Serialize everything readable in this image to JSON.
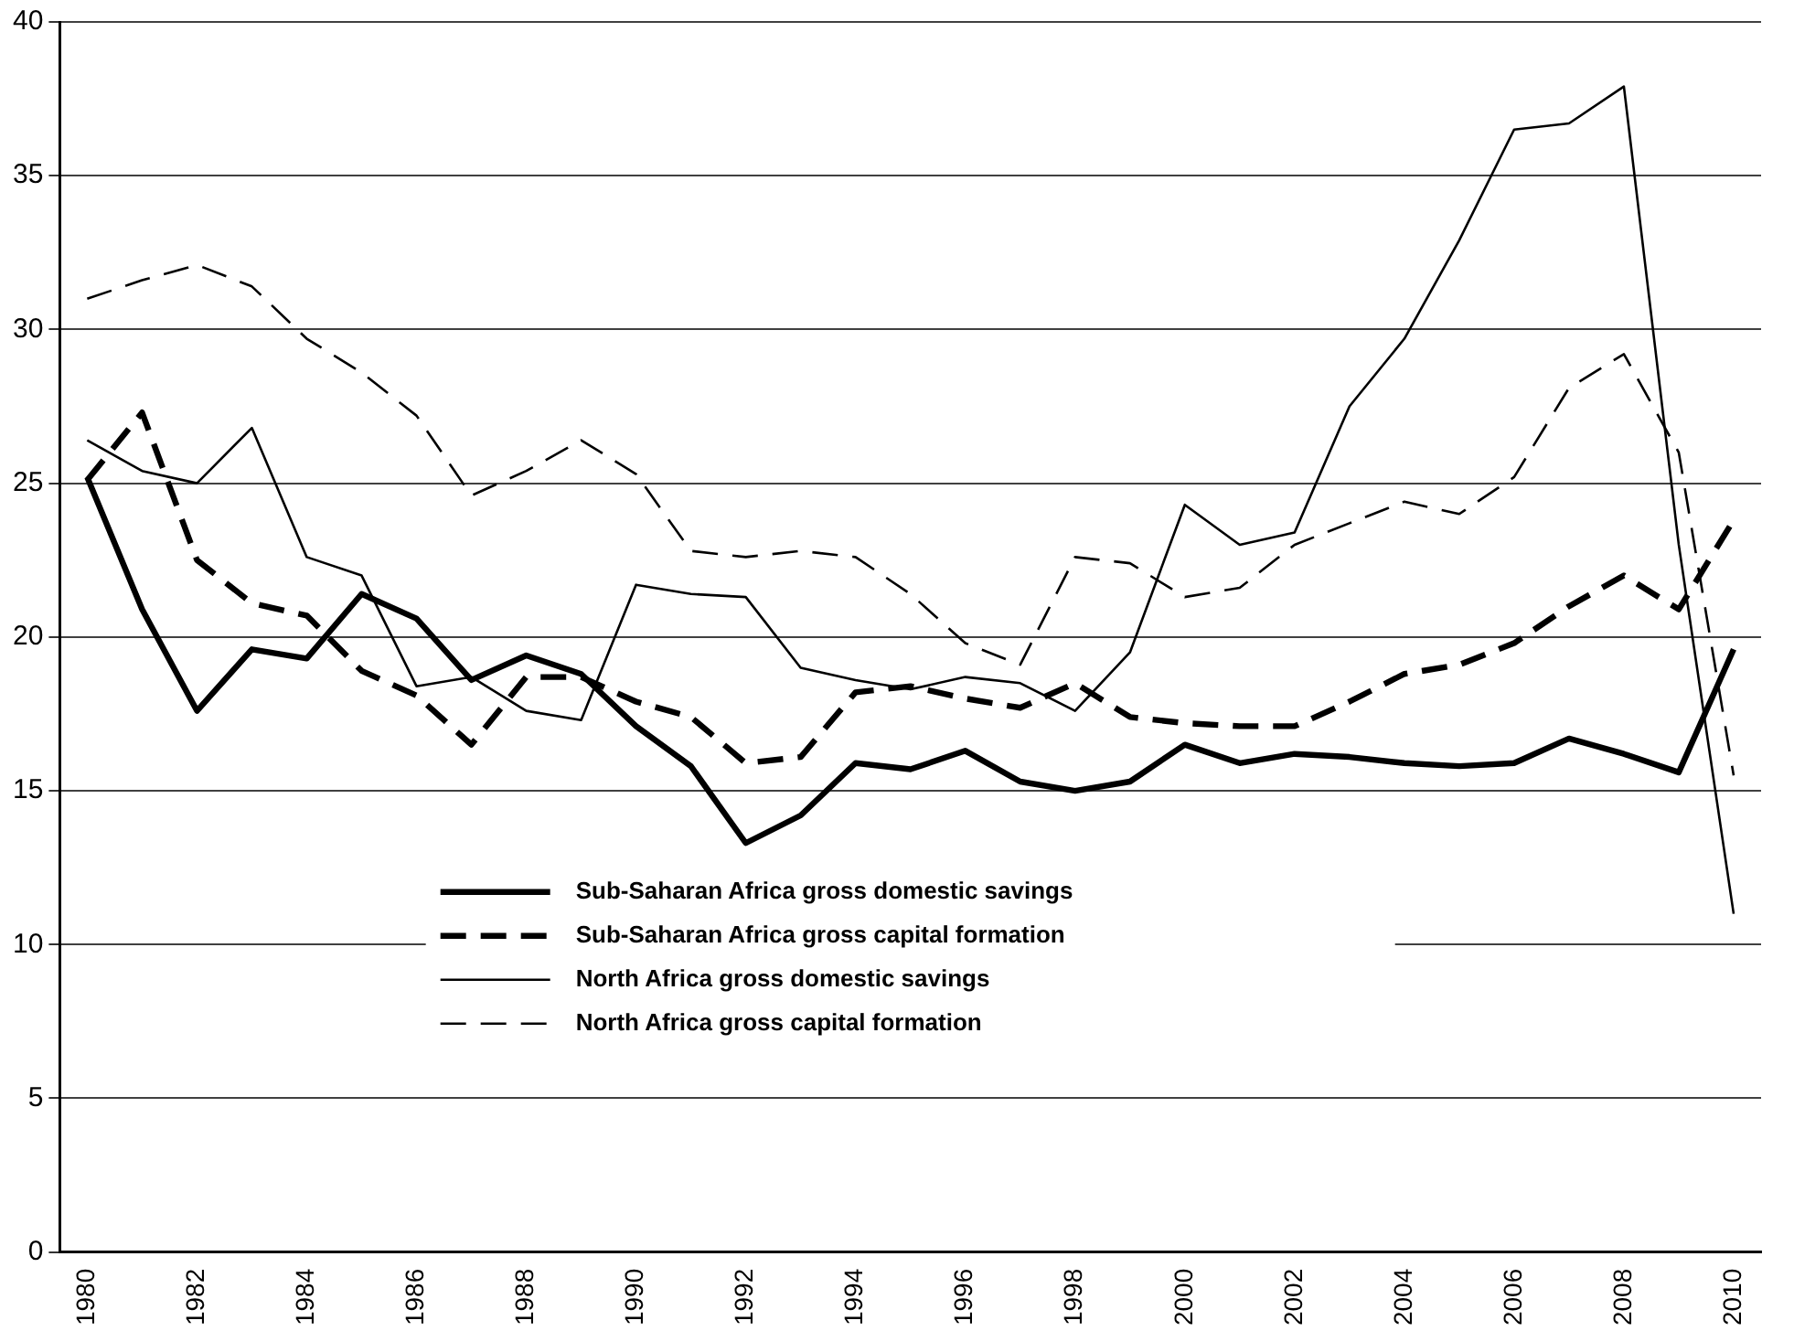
{
  "chart_data": {
    "type": "line",
    "categories": [
      "1980",
      null,
      "1982",
      null,
      "1984",
      null,
      "1986",
      null,
      "1988",
      null,
      "1990",
      null,
      "1992",
      null,
      "1994",
      null,
      "1996",
      null,
      "1998",
      null,
      "2000",
      null,
      "2002",
      null,
      "2004",
      null,
      "2006",
      null,
      "2008",
      null,
      "2010"
    ],
    "series": [
      {
        "name": "Sub-Saharan Africa gross domestic savings",
        "color": "#000000",
        "line_style": "solid",
        "values": [
          25.2,
          20.9,
          17.6,
          19.6,
          19.3,
          21.4,
          20.6,
          18.6,
          19.4,
          18.8,
          17.1,
          15.8,
          13.3,
          14.2,
          15.9,
          15.7,
          16.3,
          15.3,
          15.0,
          15.3,
          16.5,
          15.9,
          16.2,
          16.1,
          15.9,
          15.8,
          15.9,
          16.7,
          16.2,
          15.6,
          19.6
        ]
      },
      {
        "name": "Sub-Saharan Africa gross capital formation",
        "color": "#000000",
        "line_style": "dashed",
        "values": [
          25.1,
          27.3,
          22.5,
          21.1,
          20.7,
          18.9,
          18.1,
          16.5,
          18.7,
          18.7,
          17.9,
          17.4,
          15.9,
          16.1,
          18.2,
          18.4,
          18.0,
          17.7,
          18.5,
          17.4,
          17.2,
          17.1,
          17.1,
          17.9,
          18.8,
          19.1,
          19.8,
          21.0,
          22.0,
          20.9,
          23.8
        ]
      },
      {
        "name": "North Africa gross domestic savings",
        "color": "#000000",
        "line_style": "solid",
        "values": [
          26.4,
          25.4,
          25.0,
          26.8,
          22.6,
          22.0,
          18.4,
          18.7,
          17.6,
          17.3,
          21.7,
          21.4,
          21.3,
          19.0,
          18.6,
          18.3,
          18.7,
          18.5,
          17.6,
          19.5,
          24.3,
          23.0,
          23.4,
          27.5,
          29.7,
          32.9,
          36.5,
          36.7,
          37.9,
          23.0,
          11.0
        ]
      },
      {
        "name": "North Africa gross capital formation",
        "color": "#000000",
        "line_style": "dashed",
        "values": [
          31.0,
          31.6,
          32.1,
          31.4,
          29.7,
          28.6,
          27.2,
          24.6,
          25.4,
          26.4,
          25.3,
          22.8,
          22.6,
          22.8,
          22.6,
          21.4,
          19.8,
          19.1,
          22.6,
          22.4,
          21.3,
          21.6,
          23.0,
          23.7,
          24.4,
          24.0,
          25.2,
          28.1,
          29.2,
          26.0,
          15.5
        ]
      }
    ],
    "ylim": [
      0,
      40
    ],
    "yticks": [
      0,
      5,
      10,
      15,
      20,
      25,
      30,
      35,
      40
    ],
    "grid": "y",
    "legend": "bottom",
    "marker": "none"
  }
}
